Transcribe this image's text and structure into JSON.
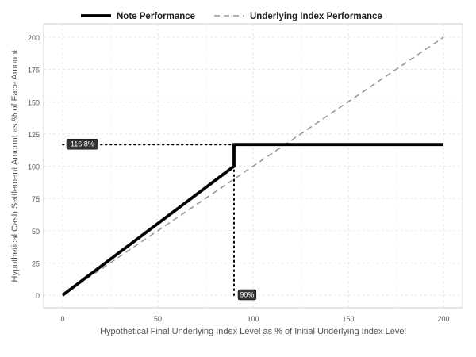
{
  "chart_data": {
    "type": "line",
    "x_label": "Hypothetical Final Underlying Index Level as % of Initial Underlying Index Level",
    "y_label": "Hypothetical Cash Settlement Amount as % of Face Amount",
    "xlim": [
      0,
      200
    ],
    "ylim": [
      0,
      200
    ],
    "x_ticks": [
      "0",
      "50",
      "100",
      "150",
      "200"
    ],
    "y_ticks": [
      "0",
      "25",
      "50",
      "75",
      "100",
      "125",
      "150",
      "175",
      "200"
    ],
    "grid": true,
    "legend_position": "top",
    "series": [
      {
        "name": "Note Performance",
        "style": "solid",
        "color": "#000000",
        "x": [
          0,
          90,
          90,
          200
        ],
        "y": [
          0,
          100,
          116.8,
          116.8
        ]
      },
      {
        "name": "Underlying Index Performance",
        "style": "dashed",
        "color": "#999999",
        "x": [
          0,
          200
        ],
        "y": [
          0,
          200
        ]
      }
    ],
    "reference_lines": [
      {
        "orientation": "horizontal",
        "value": 116.8,
        "from": 0,
        "to": 90
      },
      {
        "orientation": "vertical",
        "value": 90,
        "from": 0,
        "to": 116.8
      }
    ],
    "annotations": [
      {
        "text": "116.8%",
        "x": 0,
        "y": 116.8
      },
      {
        "text": "90%",
        "x": 90,
        "y": 0
      }
    ]
  }
}
